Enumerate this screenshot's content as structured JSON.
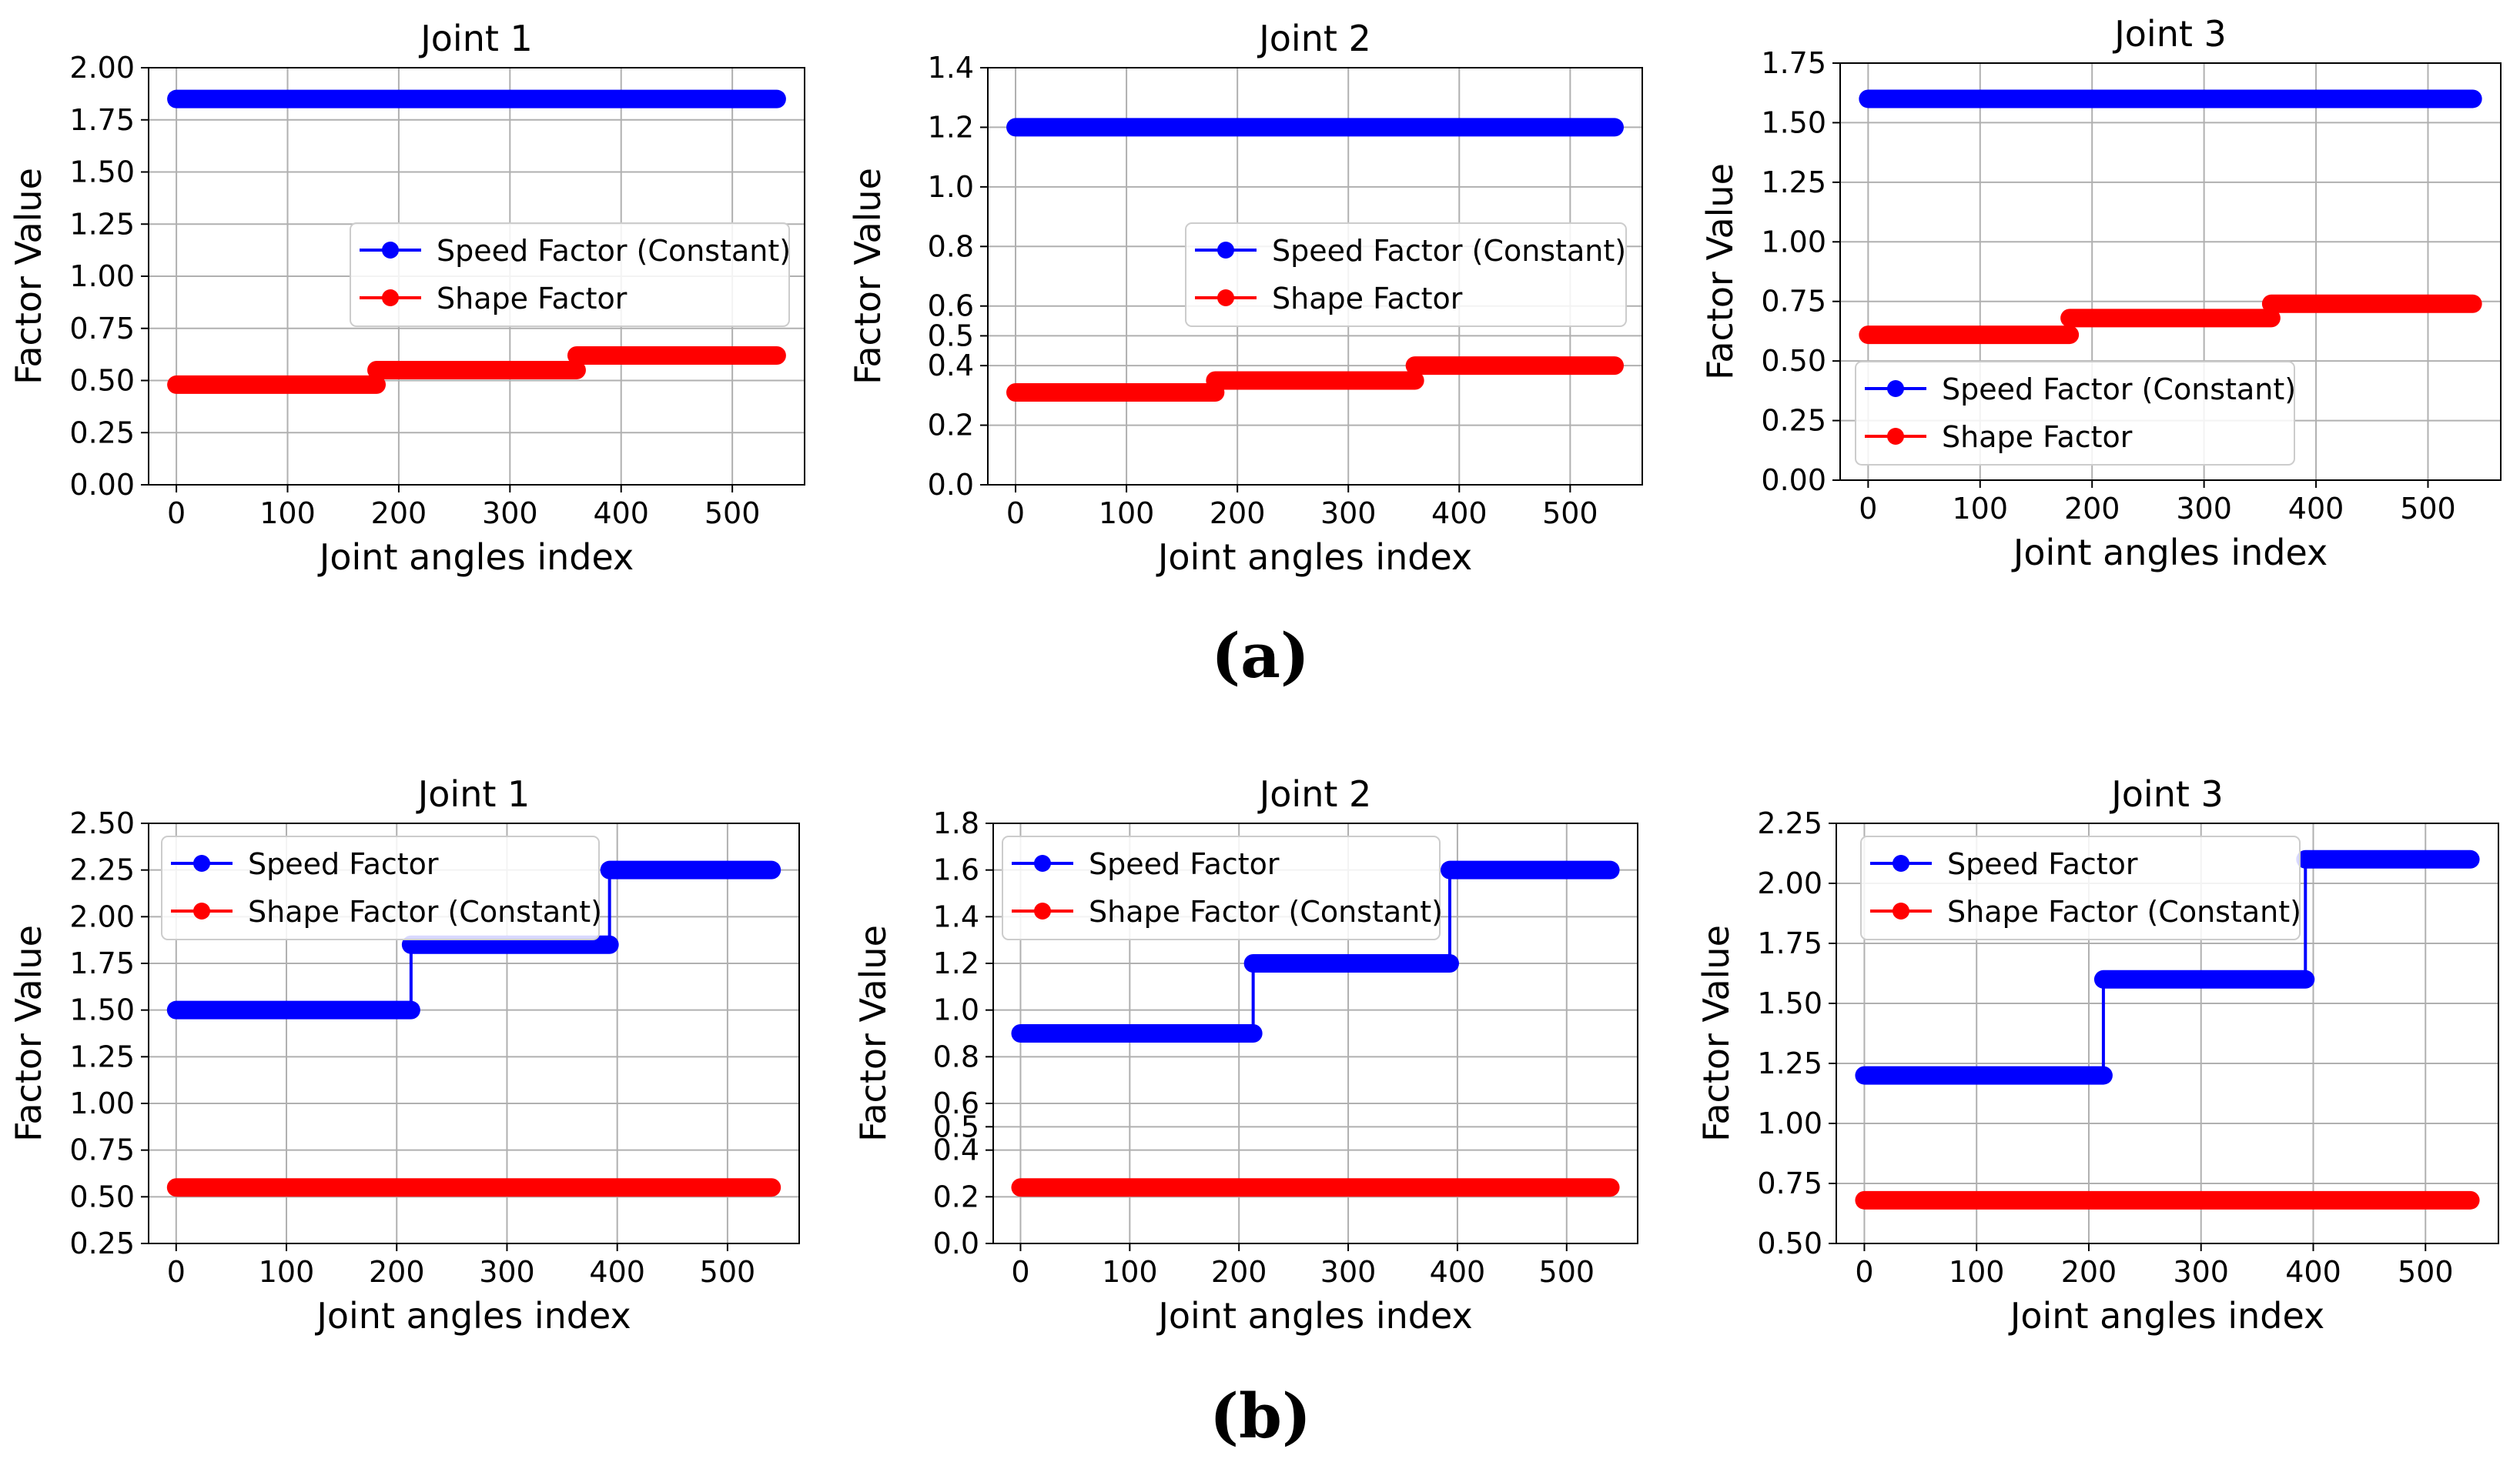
{
  "figure": {
    "captions": [
      "(a)",
      "(b)"
    ]
  },
  "colors": {
    "speed": "#0000ff",
    "shape": "#ff0000",
    "grid": "#b0b0b0",
    "axis": "#000000"
  },
  "chart_data": [
    {
      "type": "line",
      "row": "a",
      "title": "Joint 1",
      "xlabel": "Joint angles index",
      "ylabel": "Factor Value",
      "xlim": [
        -25,
        565
      ],
      "ylim": [
        0,
        2.0
      ],
      "xticks": [
        0,
        100,
        200,
        300,
        400,
        500
      ],
      "yticks": [
        "0.00",
        "0.25",
        "0.50",
        "0.75",
        "1.00",
        "1.25",
        "1.50",
        "1.75",
        "2.00"
      ],
      "grid": true,
      "legend": "center-right",
      "series": [
        {
          "name": "Speed Factor (Constant)",
          "color": "#0000ff",
          "steps": [
            {
              "from": 0,
              "to": 540,
              "value": 1.85
            }
          ]
        },
        {
          "name": "Shape Factor",
          "color": "#ff0000",
          "steps": [
            {
              "from": 0,
              "to": 180,
              "value": 0.48
            },
            {
              "from": 180,
              "to": 360,
              "value": 0.55
            },
            {
              "from": 360,
              "to": 540,
              "value": 0.62
            }
          ]
        }
      ]
    },
    {
      "type": "line",
      "row": "a",
      "title": "Joint 2",
      "xlabel": "Joint angles index",
      "ylabel": "Factor Value",
      "xlim": [
        -25,
        565
      ],
      "ylim": [
        0,
        1.4
      ],
      "xticks": [
        0,
        100,
        200,
        300,
        400,
        500
      ],
      "yticks": [
        "0.0",
        "0.2",
        "0.4",
        "0.5",
        "0.6",
        "0.8",
        "1.0",
        "1.2",
        "1.4"
      ],
      "grid": true,
      "legend": "center-right",
      "series": [
        {
          "name": "Speed Factor (Constant)",
          "color": "#0000ff",
          "steps": [
            {
              "from": 0,
              "to": 540,
              "value": 1.2
            }
          ]
        },
        {
          "name": "Shape Factor",
          "color": "#ff0000",
          "steps": [
            {
              "from": 0,
              "to": 180,
              "value": 0.31
            },
            {
              "from": 180,
              "to": 360,
              "value": 0.35
            },
            {
              "from": 360,
              "to": 540,
              "value": 0.4
            }
          ]
        }
      ]
    },
    {
      "type": "line",
      "row": "a",
      "title": "Joint 3",
      "xlabel": "Joint angles index",
      "ylabel": "Factor Value",
      "xlim": [
        -25,
        565
      ],
      "ylim": [
        0,
        1.75
      ],
      "xticks": [
        0,
        100,
        200,
        300,
        400,
        500
      ],
      "yticks": [
        "0.00",
        "0.25",
        "0.50",
        "0.75",
        "1.00",
        "1.25",
        "1.50",
        "1.75"
      ],
      "grid": true,
      "legend": "lower-left",
      "series": [
        {
          "name": "Speed Factor (Constant)",
          "color": "#0000ff",
          "steps": [
            {
              "from": 0,
              "to": 540,
              "value": 1.6
            }
          ]
        },
        {
          "name": "Shape Factor",
          "color": "#ff0000",
          "steps": [
            {
              "from": 0,
              "to": 180,
              "value": 0.61
            },
            {
              "from": 180,
              "to": 360,
              "value": 0.68
            },
            {
              "from": 360,
              "to": 540,
              "value": 0.74
            }
          ]
        }
      ]
    },
    {
      "type": "line",
      "row": "b",
      "title": "Joint 1",
      "xlabel": "Joint angles index",
      "ylabel": "Factor Value",
      "xlim": [
        -25,
        565
      ],
      "ylim": [
        0.25,
        2.5
      ],
      "xticks": [
        0,
        100,
        200,
        300,
        400,
        500
      ],
      "yticks": [
        "0.25",
        "0.50",
        "0.75",
        "1.00",
        "1.25",
        "1.50",
        "1.75",
        "2.00",
        "2.25",
        "2.50"
      ],
      "grid": true,
      "legend": "upper-left",
      "series": [
        {
          "name": "Speed Factor",
          "color": "#0000ff",
          "steps": [
            {
              "from": 0,
              "to": 213,
              "value": 1.5
            },
            {
              "from": 213,
              "to": 393,
              "value": 1.85
            },
            {
              "from": 393,
              "to": 540,
              "value": 2.25
            }
          ]
        },
        {
          "name": "Shape Factor (Constant)",
          "color": "#ff0000",
          "steps": [
            {
              "from": 0,
              "to": 540,
              "value": 0.55
            }
          ]
        }
      ]
    },
    {
      "type": "line",
      "row": "b",
      "title": "Joint 2",
      "xlabel": "Joint angles index",
      "ylabel": "Factor Value",
      "xlim": [
        -25,
        565
      ],
      "ylim": [
        0,
        1.8
      ],
      "xticks": [
        0,
        100,
        200,
        300,
        400,
        500
      ],
      "yticks": [
        "0.0",
        "0.2",
        "0.4",
        "0.5",
        "0.6",
        "0.8",
        "1.0",
        "1.2",
        "1.4",
        "1.6",
        "1.8"
      ],
      "grid": true,
      "legend": "upper-left",
      "series": [
        {
          "name": "Speed Factor",
          "color": "#0000ff",
          "steps": [
            {
              "from": 0,
              "to": 213,
              "value": 0.9
            },
            {
              "from": 213,
              "to": 393,
              "value": 1.2
            },
            {
              "from": 393,
              "to": 540,
              "value": 1.6
            }
          ]
        },
        {
          "name": "Shape Factor (Constant)",
          "color": "#ff0000",
          "steps": [
            {
              "from": 0,
              "to": 540,
              "value": 0.24
            }
          ]
        }
      ]
    },
    {
      "type": "line",
      "row": "b",
      "title": "Joint 3",
      "xlabel": "Joint angles index",
      "ylabel": "Factor Value",
      "xlim": [
        -25,
        565
      ],
      "ylim": [
        0.5,
        2.25
      ],
      "xticks": [
        0,
        100,
        200,
        300,
        400,
        500
      ],
      "yticks": [
        "0.50",
        "0.75",
        "1.00",
        "1.25",
        "1.50",
        "1.75",
        "2.00",
        "2.25"
      ],
      "grid": true,
      "legend": "upper-left",
      "series": [
        {
          "name": "Speed Factor",
          "color": "#0000ff",
          "steps": [
            {
              "from": 0,
              "to": 213,
              "value": 1.2
            },
            {
              "from": 213,
              "to": 393,
              "value": 1.6
            },
            {
              "from": 393,
              "to": 540,
              "value": 2.1
            }
          ]
        },
        {
          "name": "Shape Factor (Constant)",
          "color": "#ff0000",
          "steps": [
            {
              "from": 0,
              "to": 540,
              "value": 0.68
            }
          ]
        }
      ]
    }
  ]
}
